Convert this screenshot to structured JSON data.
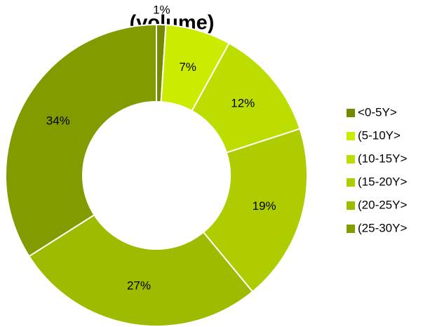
{
  "chart_data": {
    "type": "donut",
    "title": "(volume)",
    "categories": [
      "<0-5Y>",
      "(5-10Y>",
      "(10-15Y>",
      "(15-20Y>",
      "(20-25Y>",
      "(25-30Y>"
    ],
    "values": [
      1,
      7,
      12,
      19,
      27,
      34
    ],
    "value_labels": [
      "1%",
      "7%",
      "12%",
      "19%",
      "27%",
      "34%"
    ],
    "colors": [
      "#748800",
      "#cbec00",
      "#bddd00",
      "#aecc00",
      "#9fbb00",
      "#829c00"
    ],
    "legend": "right"
  }
}
